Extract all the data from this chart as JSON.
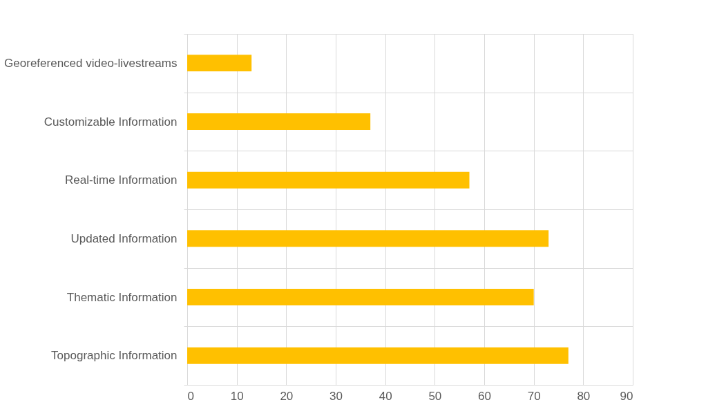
{
  "chart_data": {
    "type": "bar",
    "orientation": "horizontal",
    "categories": [
      "Georeferenced video-livestreams",
      "Customizable Information",
      "Real-time Information",
      "Updated Information",
      "Thematic Information",
      "Topographic Information"
    ],
    "values": [
      13,
      37,
      57,
      73,
      70,
      77
    ],
    "color": "#ffc000",
    "xlim": [
      0,
      90
    ],
    "xticks": [
      0,
      10,
      20,
      30,
      40,
      50,
      60,
      70,
      80,
      90
    ],
    "grid": true
  }
}
